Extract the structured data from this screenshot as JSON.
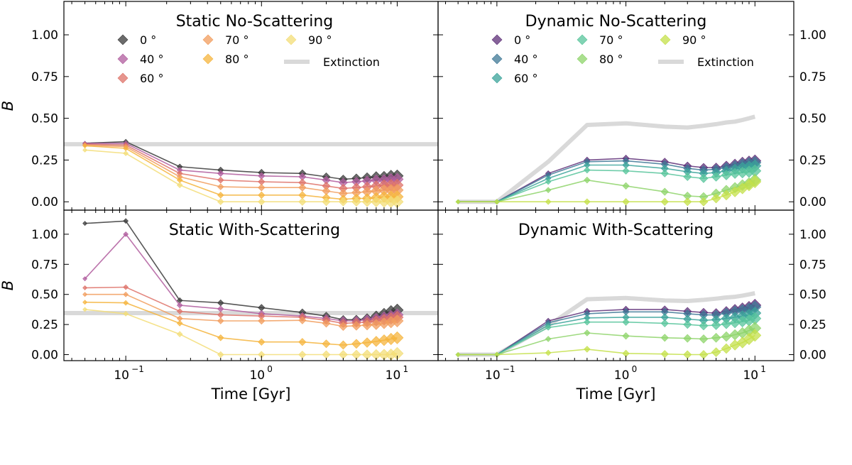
{
  "chart_data": {
    "type": "line",
    "x_scale": "log",
    "xlim": [
      0.035,
      20
    ],
    "ylim": [
      -0.05,
      1.2
    ],
    "xlabel": "Time [Gyr]",
    "ylabel": "B",
    "yticks": [
      "0.00",
      "0.25",
      "0.50",
      "0.75",
      "1.00"
    ],
    "xtick_labels": {
      "base": "10",
      "exponents": [
        "−1",
        "0",
        "1"
      ]
    },
    "legend_angles": [
      "0 °",
      "40 °",
      "60 °",
      "70 °",
      "80 °",
      "90 °"
    ],
    "legend_extinction": "Extinction",
    "legend_placement": "top",
    "x": [
      0.05,
      0.1,
      0.25,
      0.5,
      1,
      2,
      3,
      4,
      5,
      6,
      7,
      8,
      9,
      10
    ],
    "static_colors": [
      "#3a3a3a",
      "#b05c9e",
      "#de7268",
      "#f19c5c",
      "#f5b43c",
      "#f3dd77"
    ],
    "dynamic_colors": [
      "#5e2f78",
      "#3e7896",
      "#3aa39a",
      "#57c49b",
      "#8ed46a",
      "#c4e04a"
    ],
    "extinction_color": "#d9d9d9",
    "panels": [
      {
        "title": "Static No-Scattering",
        "extinction": {
          "x": [
            0.035,
            20
          ],
          "y": [
            0.345,
            0.345
          ]
        },
        "series": [
          {
            "name": "0 °",
            "values": [
              0.35,
              0.36,
              0.21,
              0.19,
              0.175,
              0.17,
              0.15,
              0.135,
              0.14,
              0.145,
              0.15,
              0.15,
              0.155,
              0.155
            ]
          },
          {
            "name": "40 °",
            "values": [
              0.35,
              0.35,
              0.19,
              0.17,
              0.155,
              0.15,
              0.13,
              0.115,
              0.12,
              0.125,
              0.13,
              0.13,
              0.135,
              0.135
            ]
          },
          {
            "name": "60 °",
            "values": [
              0.345,
              0.34,
              0.17,
              0.13,
              0.12,
              0.115,
              0.095,
              0.08,
              0.085,
              0.09,
              0.095,
              0.1,
              0.1,
              0.1
            ]
          },
          {
            "name": "70 °",
            "values": [
              0.34,
              0.33,
              0.15,
              0.09,
              0.085,
              0.085,
              0.065,
              0.05,
              0.055,
              0.06,
              0.065,
              0.07,
              0.07,
              0.07
            ]
          },
          {
            "name": "80 °",
            "values": [
              0.335,
              0.32,
              0.13,
              0.04,
              0.04,
              0.04,
              0.025,
              0.015,
              0.02,
              0.02,
              0.025,
              0.03,
              0.03,
              0.03
            ]
          },
          {
            "name": "90 °",
            "values": [
              0.31,
              0.29,
              0.1,
              0.0,
              0.0,
              0.0,
              0.0,
              0.0,
              0.0,
              0.0,
              0.0,
              0.0,
              0.0,
              0.0
            ]
          }
        ]
      },
      {
        "title": "Dynamic No-Scattering",
        "extinction": {
          "x": [
            0.05,
            0.1,
            0.25,
            0.5,
            1,
            2,
            3,
            4,
            5,
            6,
            7,
            8,
            9,
            10
          ],
          "y": [
            0.0,
            0.0,
            0.24,
            0.46,
            0.47,
            0.45,
            0.445,
            0.455,
            0.465,
            0.475,
            0.48,
            0.49,
            0.5,
            0.51
          ]
        },
        "series": [
          {
            "name": "0 °",
            "values": [
              0.0,
              0.0,
              0.17,
              0.25,
              0.26,
              0.24,
              0.215,
              0.205,
              0.205,
              0.215,
              0.225,
              0.235,
              0.24,
              0.245
            ]
          },
          {
            "name": "40 °",
            "values": [
              0.0,
              0.0,
              0.16,
              0.24,
              0.245,
              0.225,
              0.2,
              0.19,
              0.195,
              0.205,
              0.215,
              0.225,
              0.23,
              0.235
            ]
          },
          {
            "name": "60 °",
            "values": [
              0.0,
              0.0,
              0.14,
              0.22,
              0.22,
              0.2,
              0.18,
              0.17,
              0.175,
              0.185,
              0.195,
              0.205,
              0.21,
              0.215
            ]
          },
          {
            "name": "70 °",
            "values": [
              0.0,
              0.0,
              0.12,
              0.19,
              0.185,
              0.17,
              0.15,
              0.14,
              0.15,
              0.16,
              0.17,
              0.175,
              0.18,
              0.185
            ]
          },
          {
            "name": "80 °",
            "values": [
              0.0,
              0.0,
              0.07,
              0.13,
              0.095,
              0.06,
              0.035,
              0.03,
              0.05,
              0.07,
              0.085,
              0.1,
              0.11,
              0.13
            ]
          },
          {
            "name": "90 °",
            "values": [
              0.0,
              0.0,
              0.0,
              0.0,
              0.0,
              0.0,
              0.0,
              0.0,
              0.02,
              0.04,
              0.06,
              0.08,
              0.1,
              0.12
            ]
          }
        ]
      },
      {
        "title": "Static With-Scattering",
        "extinction": {
          "x": [
            0.035,
            20
          ],
          "y": [
            0.345,
            0.345
          ]
        },
        "series": [
          {
            "name": "0 °",
            "values": [
              1.09,
              1.11,
              0.45,
              0.43,
              0.39,
              0.35,
              0.32,
              0.29,
              0.29,
              0.3,
              0.32,
              0.34,
              0.36,
              0.37
            ]
          },
          {
            "name": "40 °",
            "values": [
              0.63,
              1.0,
              0.41,
              0.38,
              0.34,
              0.32,
              0.3,
              0.28,
              0.28,
              0.29,
              0.3,
              0.31,
              0.32,
              0.33
            ]
          },
          {
            "name": "60 °",
            "values": [
              0.555,
              0.56,
              0.36,
              0.33,
              0.32,
              0.31,
              0.285,
              0.26,
              0.265,
              0.27,
              0.28,
              0.29,
              0.3,
              0.31
            ]
          },
          {
            "name": "70 °",
            "values": [
              0.5,
              0.5,
              0.3,
              0.28,
              0.28,
              0.285,
              0.26,
              0.235,
              0.24,
              0.245,
              0.25,
              0.26,
              0.27,
              0.28
            ]
          },
          {
            "name": "80 °",
            "values": [
              0.435,
              0.43,
              0.26,
              0.14,
              0.105,
              0.105,
              0.09,
              0.08,
              0.09,
              0.1,
              0.11,
              0.12,
              0.13,
              0.14
            ]
          },
          {
            "name": "90 °",
            "values": [
              0.375,
              0.34,
              0.17,
              0.0,
              0.0,
              0.0,
              0.0,
              0.0,
              0.0,
              0.0,
              0.0,
              0.0,
              0.0,
              0.01
            ]
          }
        ]
      },
      {
        "title": "Dynamic With-Scattering",
        "extinction": {
          "x": [
            0.05,
            0.1,
            0.25,
            0.5,
            1,
            2,
            3,
            4,
            5,
            6,
            7,
            8,
            9,
            10
          ],
          "y": [
            0.0,
            0.0,
            0.24,
            0.46,
            0.47,
            0.45,
            0.445,
            0.455,
            0.465,
            0.475,
            0.48,
            0.49,
            0.5,
            0.51
          ]
        },
        "series": [
          {
            "name": "0 °",
            "values": [
              0.0,
              0.0,
              0.28,
              0.36,
              0.375,
              0.375,
              0.36,
              0.35,
              0.345,
              0.36,
              0.375,
              0.385,
              0.395,
              0.41
            ]
          },
          {
            "name": "40 °",
            "values": [
              0.0,
              0.0,
              0.265,
              0.34,
              0.355,
              0.355,
              0.34,
              0.33,
              0.33,
              0.345,
              0.36,
              0.37,
              0.38,
              0.395
            ]
          },
          {
            "name": "60 °",
            "values": [
              0.0,
              0.0,
              0.245,
              0.305,
              0.31,
              0.31,
              0.295,
              0.285,
              0.29,
              0.3,
              0.31,
              0.32,
              0.33,
              0.345
            ]
          },
          {
            "name": "70 °",
            "values": [
              0.0,
              0.0,
              0.225,
              0.27,
              0.27,
              0.26,
              0.25,
              0.24,
              0.245,
              0.255,
              0.265,
              0.275,
              0.285,
              0.3
            ]
          },
          {
            "name": "80 °",
            "values": [
              0.0,
              0.0,
              0.13,
              0.18,
              0.155,
              0.14,
              0.135,
              0.13,
              0.14,
              0.15,
              0.165,
              0.18,
              0.2,
              0.22
            ]
          },
          {
            "name": "90 °",
            "values": [
              0.0,
              0.0,
              0.015,
              0.045,
              0.01,
              0.005,
              0.0,
              0.0,
              0.02,
              0.05,
              0.08,
              0.1,
              0.13,
              0.16
            ]
          }
        ]
      }
    ]
  }
}
